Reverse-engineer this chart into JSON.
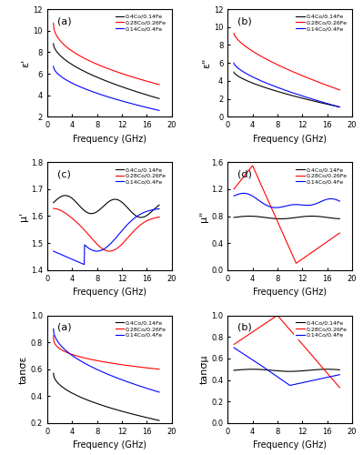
{
  "legend_labels": [
    "0.4Co/0.14Fe",
    "0.28Co/0.26Fe",
    "0.14Co/0.4Fe"
  ],
  "colors": [
    "black",
    "red",
    "blue"
  ],
  "freq_range": [
    1,
    18
  ],
  "panel_labels": [
    [
      "(a)",
      "(b)"
    ],
    [
      "(c)",
      "(d)"
    ],
    [
      "(a)",
      "(b)"
    ]
  ],
  "ylabels": [
    [
      "ε'",
      "ε\""
    ],
    [
      "μ'",
      "μ\""
    ],
    [
      "tanσε",
      "tanσμ"
    ]
  ],
  "xlabels": "Frequency (GHz)",
  "ylims": [
    [
      [
        2,
        12
      ],
      [
        0,
        12
      ]
    ],
    [
      [
        1.4,
        1.8
      ],
      [
        0.0,
        1.6
      ]
    ],
    [
      [
        0.2,
        1.0
      ],
      [
        0.0,
        1.0
      ]
    ]
  ],
  "yticks": [
    [
      [
        2,
        4,
        6,
        8,
        10,
        12
      ],
      [
        0,
        2,
        4,
        6,
        8,
        10,
        12
      ]
    ],
    [
      [
        1.4,
        1.5,
        1.6,
        1.7,
        1.8
      ],
      [
        0.0,
        0.4,
        0.8,
        1.2,
        1.6
      ]
    ],
    [
      [
        0.2,
        0.4,
        0.6,
        0.8,
        1.0
      ],
      [
        0.0,
        0.2,
        0.4,
        0.6,
        0.8,
        1.0
      ]
    ]
  ],
  "xticks": [
    0,
    4,
    8,
    12,
    16,
    20
  ]
}
